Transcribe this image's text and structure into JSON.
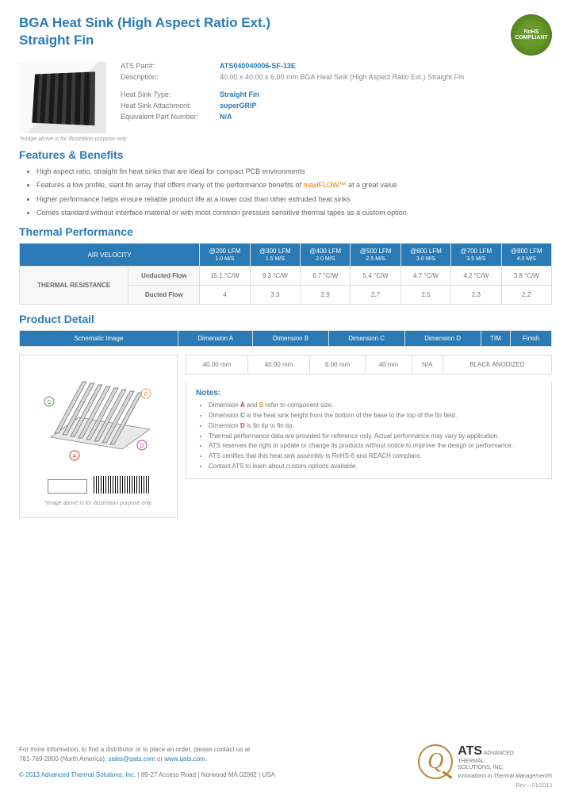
{
  "header": {
    "title_line1": "BGA Heat Sink (High Aspect Ratio Ext.)",
    "title_line2": "Straight Fin",
    "rohs": "RoHS COMPLIANT"
  },
  "specs": {
    "part_label": "ATS Part#:",
    "part_value": "ATS040040006-SF-13E",
    "desc_label": "Description:",
    "desc_value": "40.00 x 40.00 x 6.00 mm  BGA Heat Sink (High Aspect Ratio Ext.) Straight Fin",
    "type_label": "Heat Sink Type:",
    "type_value": "Straight Fin",
    "attach_label": "Heat Sink Attachment:",
    "attach_value": "superGRIP",
    "equiv_label": "Equivalent Part Number:",
    "equiv_value": "N/A"
  },
  "img_note": "*Image above is for illustration purpose only",
  "features": {
    "heading": "Features & Benefits",
    "items": [
      "High aspect ratio, straight fin heat sinks that are ideal for compact PCB environments",
      "Features a low profile, slant fin array that offers many of the performance benefits of ",
      " at a great value",
      "Higher performance helps ensure reliable product life at a lower cost than other extruded heat sinks",
      "Comes standard without interface material or with most common pressure sensitive thermal tapes as a custom option"
    ],
    "maxiflow": "maxiFLOW™"
  },
  "thermal": {
    "heading": "Thermal Performance",
    "col_main": "AIR VELOCITY",
    "cols": [
      {
        "t": "@200 LFM",
        "s": "1.0 M/S"
      },
      {
        "t": "@300 LFM",
        "s": "1.5 M/S"
      },
      {
        "t": "@400 LFM",
        "s": "2.0 M/S"
      },
      {
        "t": "@500 LFM",
        "s": "2.5 M/S"
      },
      {
        "t": "@600 LFM",
        "s": "3.0 M/S"
      },
      {
        "t": "@700 LFM",
        "s": "3.5 M/S"
      },
      {
        "t": "@800 LFM",
        "s": "4.0 M/S"
      }
    ],
    "row_label": "THERMAL RESISTANCE",
    "rows": [
      {
        "label": "Unducted Flow",
        "vals": [
          "15.1 °C/W",
          "9.3 °C/W",
          "6.7 °C/W",
          "5.4 °C/W",
          "4.7 °C/W",
          "4.2 °C/W",
          "3.8 °C/W"
        ]
      },
      {
        "label": "Ducted Flow",
        "vals": [
          "4",
          "3.3",
          "2.9",
          "2.7",
          "2.5",
          "2.3",
          "2.2"
        ]
      }
    ]
  },
  "detail": {
    "heading": "Product Detail",
    "cols": [
      "Schematic Image",
      "Dimension A",
      "Dimension B",
      "Dimension C",
      "Dimension D",
      "TIM",
      "Finish"
    ],
    "vals": [
      "40.00 mm",
      "40.00 mm",
      "6.00 mm",
      "40 mm",
      "N/A",
      "BLACK ANODIZED"
    ],
    "notes_h": "Notes:",
    "notes": [
      {
        "pre": "Dimension ",
        "a": "A",
        "mid": " and ",
        "b": "B",
        "post": " refer to component size."
      },
      {
        "pre": "Dimension ",
        "c": "C",
        "post": " is the heat sink height from the bottom of the base to the top of the fin field."
      },
      {
        "pre": "Dimension ",
        "d": "D",
        "post": " is fin tip to fin tip."
      },
      {
        "text": "Thermal performance data are provided for reference only. Actual performance may vary by application."
      },
      {
        "text": "ATS reserves the right to update or change its products without notice to improve the design or performance."
      },
      {
        "text": "ATS certifies that this heat sink assembly is RoHS-6 and REACH compliant."
      },
      {
        "text": "Contact ATS to learn about custom options available."
      }
    ],
    "img_note2": "*Image above is for illustration purpose only."
  },
  "footer": {
    "contact1": "For more information, to find a distributor or to place an order, please contact us at",
    "contact2": "781-769-2800 (North America), ",
    "email": "sales@qats.com",
    "or": " or ",
    "url": "www.qats.com",
    "period": ".",
    "copyright": "© 2013 Advanced Thermal Solutions, Inc.",
    "addr": " | 89-27 Access Road | Norwood MA   02062 | USA",
    "logo_name1": "ADVANCED",
    "logo_name2": "THERMAL",
    "logo_name3": "SOLUTIONS, INC.",
    "tagline": "Innovations in Thermal Management®",
    "rev": "Rev – 01/2013"
  }
}
